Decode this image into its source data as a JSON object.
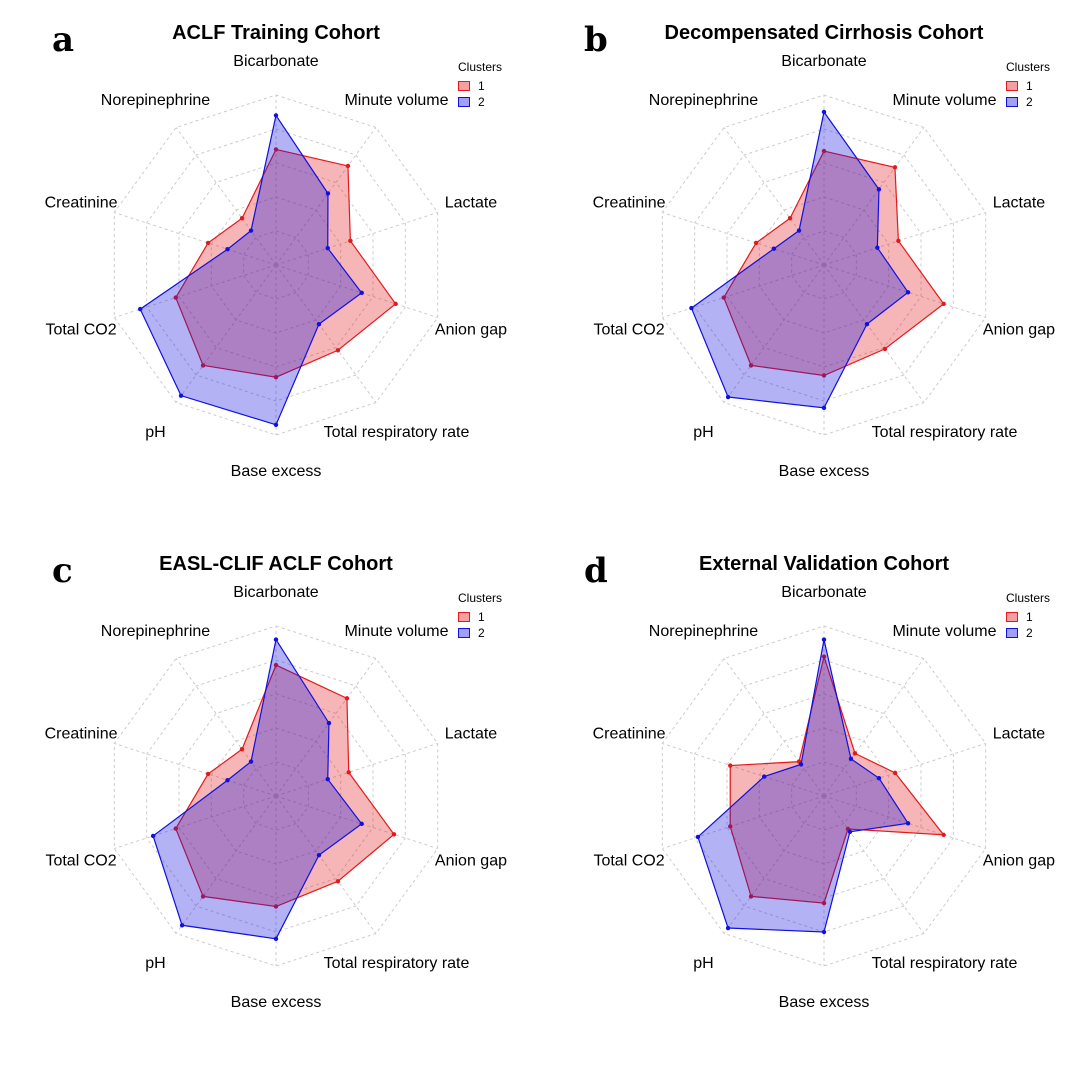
{
  "legend": {
    "title": "Clusters",
    "items": [
      "1",
      "2"
    ]
  },
  "colors": {
    "cluster1": "#e31a1c",
    "cluster2": "#1010e0",
    "fill1": "#f4a0a0",
    "fill2": "#a0a0f4",
    "overlap": "#a67ac8",
    "grid": "#cccccc"
  },
  "chart_data": [
    {
      "type": "radar",
      "letter": "a",
      "title": "ACLF Training Cohort",
      "axes": [
        "Bicarbonate",
        "Minute volume",
        "Lactate",
        "Anion gap",
        "Total respiratory rate",
        "Base excess",
        "pH",
        "Total CO2",
        "Creatinine",
        "Norepinephrine"
      ],
      "rlim": [
        0,
        1
      ],
      "grid": true,
      "series": [
        {
          "name": "1",
          "values": [
            0.68,
            0.72,
            0.46,
            0.74,
            0.62,
            0.66,
            0.73,
            0.62,
            0.42,
            0.34
          ]
        },
        {
          "name": "2",
          "values": [
            0.88,
            0.52,
            0.32,
            0.53,
            0.43,
            0.94,
            0.95,
            0.84,
            0.3,
            0.25
          ]
        }
      ]
    },
    {
      "type": "radar",
      "letter": "b",
      "title": "Decompensated Cirrhosis Cohort",
      "axes": [
        "Bicarbonate",
        "Minute volume",
        "Lactate",
        "Anion gap",
        "Total respiratory rate",
        "Base excess",
        "pH",
        "Total CO2",
        "Creatinine",
        "Norepinephrine"
      ],
      "rlim": [
        0,
        1
      ],
      "grid": true,
      "series": [
        {
          "name": "1",
          "values": [
            0.67,
            0.71,
            0.46,
            0.74,
            0.61,
            0.65,
            0.73,
            0.62,
            0.42,
            0.34
          ]
        },
        {
          "name": "2",
          "values": [
            0.9,
            0.55,
            0.33,
            0.52,
            0.43,
            0.84,
            0.96,
            0.82,
            0.31,
            0.25
          ]
        }
      ]
    },
    {
      "type": "radar",
      "letter": "c",
      "title": "EASL-CLIF ACLF Cohort",
      "axes": [
        "Bicarbonate",
        "Minute volume",
        "Lactate",
        "Anion gap",
        "Total respiratory rate",
        "Base excess",
        "pH",
        "Total CO2",
        "Creatinine",
        "Norepinephrine"
      ],
      "rlim": [
        0,
        1
      ],
      "grid": true,
      "series": [
        {
          "name": "1",
          "values": [
            0.77,
            0.71,
            0.45,
            0.73,
            0.62,
            0.65,
            0.73,
            0.62,
            0.42,
            0.34
          ]
        },
        {
          "name": "2",
          "values": [
            0.92,
            0.53,
            0.32,
            0.53,
            0.43,
            0.84,
            0.94,
            0.76,
            0.3,
            0.25
          ]
        }
      ]
    },
    {
      "type": "radar",
      "letter": "d",
      "title": "External Validation Cohort",
      "axes": [
        "Bicarbonate",
        "Minute volume",
        "Lactate",
        "Anion gap",
        "Total respiratory rate",
        "Base excess",
        "pH",
        "Total CO2",
        "Creatinine",
        "Norepinephrine"
      ],
      "rlim": [
        0,
        1
      ],
      "grid": true,
      "series": [
        {
          "name": "1",
          "values": [
            0.82,
            0.31,
            0.44,
            0.74,
            0.24,
            0.63,
            0.73,
            0.58,
            0.58,
            0.25
          ]
        },
        {
          "name": "2",
          "values": [
            0.92,
            0.27,
            0.34,
            0.52,
            0.26,
            0.8,
            0.96,
            0.78,
            0.37,
            0.23
          ]
        }
      ]
    }
  ]
}
